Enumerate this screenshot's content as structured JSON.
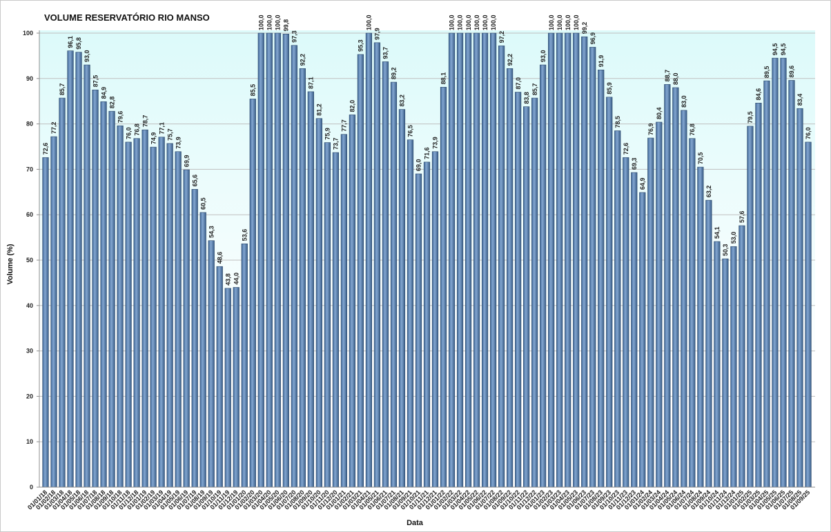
{
  "chart_data": {
    "type": "bar",
    "title": "VOLUME RESERVATÓRIO RIO MANSO",
    "xlabel": "Data",
    "ylabel": "Volume (%)",
    "ylim": [
      0,
      100
    ],
    "yticks": [
      0,
      10,
      20,
      30,
      40,
      50,
      60,
      70,
      80,
      90,
      100
    ],
    "grid": true,
    "data_labels": true,
    "colors": {
      "bar": "#4F81BD",
      "plot_background_top": "#DCFAFA",
      "plot_background_bottom": "#FFFFFF",
      "gridline": "#BFBFBF",
      "axis": "#8C8C8C"
    },
    "categories": [
      "01/01/18",
      "01/02/18",
      "01/03/18",
      "01/04/18",
      "01/05/18",
      "01/06/18",
      "01/07/18",
      "01/08/18",
      "01/09/18",
      "01/10/18",
      "01/11/18",
      "01/12/18",
      "01/01/19",
      "01/02/19",
      "01/03/19",
      "01/04/19",
      "01/05/19",
      "01/06/19",
      "01/07/19",
      "01/08/19",
      "01/09/19",
      "01/10/19",
      "01/11/19",
      "01/12/19",
      "01/01/20",
      "01/02/20",
      "01/03/20",
      "01/04/20",
      "01/05/20",
      "01/06/20",
      "01/07/20",
      "01/08/20",
      "01/09/20",
      "01/10/20",
      "01/11/20",
      "01/12/20",
      "01/01/21",
      "01/02/21",
      "01/03/21",
      "01/04/21",
      "01/05/21",
      "01/06/21",
      "01/07/21",
      "01/08/21",
      "01/09/21",
      "01/10/21",
      "01/11/21",
      "01/12/21",
      "01/01/22",
      "01/02/22",
      "01/03/22",
      "01/04/22",
      "01/05/22",
      "01/06/22",
      "01/07/22",
      "01/08/22",
      "01/09/22",
      "01/10/22",
      "01/11/22",
      "01/12/22",
      "01/01/23",
      "01/02/23",
      "01/03/23",
      "01/04/23",
      "01/05/23",
      "01/06/23",
      "01/07/23",
      "01/08/23",
      "01/09/23",
      "01/10/23",
      "01/11/23",
      "01/12/23",
      "01/01/24",
      "01/02/24",
      "01/03/24",
      "01/04/24",
      "01/05/24",
      "01/06/24",
      "01/07/24",
      "01/08/24",
      "01/09/24",
      "01/10/24",
      "01/11/24",
      "01/12/24",
      "01/01/25",
      "01/02/25",
      "01/03/25",
      "01/04/25",
      "01/05/25",
      "01/06/25",
      "01/07/25",
      "01/08/25",
      "01/09/25"
    ],
    "values": [
      72.6,
      77.2,
      85.7,
      96.1,
      95.8,
      93.0,
      87.5,
      84.9,
      82.8,
      79.6,
      76.0,
      76.8,
      78.7,
      74.9,
      77.1,
      75.7,
      73.9,
      69.9,
      65.6,
      60.5,
      54.3,
      48.6,
      43.8,
      44.0,
      53.6,
      85.5,
      100.0,
      100.0,
      100.0,
      99.8,
      97.3,
      92.2,
      87.1,
      81.2,
      75.9,
      73.7,
      77.7,
      82.0,
      95.3,
      100.0,
      97.9,
      93.7,
      89.2,
      83.2,
      76.5,
      69.0,
      71.6,
      73.9,
      88.1,
      100.0,
      100.0,
      100.0,
      100.0,
      100.0,
      100.0,
      97.2,
      92.2,
      87.0,
      83.8,
      85.7,
      93.0,
      100.0,
      100.0,
      100.0,
      100.0,
      99.2,
      96.9,
      91.9,
      85.9,
      78.5,
      72.6,
      69.3,
      64.9,
      76.9,
      80.4,
      88.7,
      88.0,
      83.0,
      76.8,
      70.5,
      63.2,
      54.1,
      50.3,
      53.0,
      57.6,
      79.5,
      84.6,
      89.5,
      94.5,
      94.5,
      89.6,
      83.4,
      76.0
    ]
  }
}
